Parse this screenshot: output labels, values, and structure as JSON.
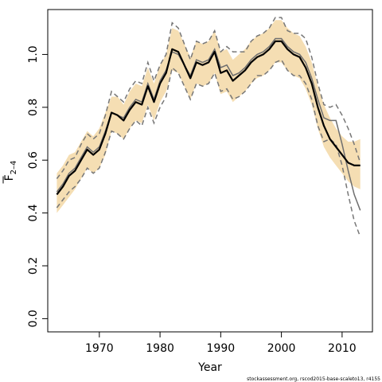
{
  "chart_data": {
    "type": "line",
    "title": "",
    "xlabel": "Year",
    "ylabel": "F",
    "ylabel_subscript": "2–4",
    "xlim": [
      1961.5,
      2015
    ],
    "ylim": [
      -0.05,
      1.17
    ],
    "x_ticks": [
      1970,
      1980,
      1990,
      2000,
      2010
    ],
    "x_tick_labels": [
      "1970",
      "1980",
      "1990",
      "2000",
      "2010"
    ],
    "y_ticks": [
      0.0,
      0.2,
      0.4,
      0.6,
      0.8,
      1.0
    ],
    "y_tick_labels": [
      "0.0",
      "0.2",
      "0.4",
      "0.6",
      "0.8",
      "1.0"
    ],
    "grid": false,
    "x": [
      1963,
      1964,
      1965,
      1966,
      1967,
      1968,
      1969,
      1970,
      1971,
      1972,
      1973,
      1974,
      1975,
      1976,
      1977,
      1978,
      1979,
      1980,
      1981,
      1982,
      1983,
      1984,
      1985,
      1986,
      1987,
      1988,
      1989,
      1990,
      1991,
      1992,
      1993,
      1994,
      1995,
      1996,
      1997,
      1998,
      1999,
      2000,
      2001,
      2002,
      2003,
      2004,
      2005,
      2006,
      2007,
      2008,
      2009,
      2010,
      2011,
      2012,
      2013
    ],
    "series": [
      {
        "role": "estimate",
        "values": [
          0.47,
          0.5,
          0.54,
          0.56,
          0.6,
          0.64,
          0.62,
          0.64,
          0.7,
          0.78,
          0.77,
          0.75,
          0.79,
          0.82,
          0.81,
          0.88,
          0.82,
          0.89,
          0.93,
          1.02,
          1.01,
          0.96,
          0.91,
          0.97,
          0.96,
          0.97,
          1.01,
          0.93,
          0.94,
          0.9,
          0.92,
          0.94,
          0.97,
          0.99,
          1.0,
          1.02,
          1.05,
          1.05,
          1.02,
          1.0,
          0.99,
          0.95,
          0.89,
          0.8,
          0.73,
          0.68,
          0.65,
          0.62,
          0.59,
          0.58,
          0.58
        ]
      },
      {
        "role": "retrospective",
        "values": [
          0.48,
          0.51,
          0.55,
          0.57,
          0.61,
          0.65,
          0.63,
          0.65,
          0.71,
          0.78,
          0.77,
          0.76,
          0.8,
          0.83,
          0.82,
          0.89,
          0.83,
          0.9,
          0.94,
          1.01,
          1.0,
          0.96,
          0.92,
          0.98,
          0.97,
          0.98,
          1.02,
          0.95,
          0.96,
          0.92,
          0.93,
          0.95,
          0.98,
          1.0,
          1.01,
          1.03,
          1.06,
          1.06,
          1.03,
          1.01,
          1.0,
          0.97,
          0.91,
          0.83,
          0.76,
          0.75,
          0.75,
          0.66,
          0.56,
          0.47,
          0.41
        ]
      },
      {
        "role": "upper-ci",
        "values": [
          0.53,
          0.56,
          0.6,
          0.61,
          0.66,
          0.7,
          0.68,
          0.7,
          0.77,
          0.86,
          0.84,
          0.82,
          0.87,
          0.9,
          0.89,
          0.97,
          0.9,
          0.96,
          1.0,
          1.12,
          1.1,
          1.04,
          0.98,
          1.05,
          1.04,
          1.05,
          1.09,
          1.01,
          1.03,
          1.01,
          1.01,
          1.01,
          1.05,
          1.07,
          1.08,
          1.1,
          1.14,
          1.14,
          1.09,
          1.08,
          1.08,
          1.06,
          0.99,
          0.89,
          0.81,
          0.8,
          0.81,
          0.77,
          0.72,
          0.66,
          0.59
        ]
      },
      {
        "role": "lower-ci",
        "values": [
          0.42,
          0.45,
          0.48,
          0.5,
          0.53,
          0.57,
          0.55,
          0.57,
          0.63,
          0.71,
          0.7,
          0.68,
          0.72,
          0.75,
          0.73,
          0.8,
          0.74,
          0.8,
          0.84,
          0.95,
          0.93,
          0.88,
          0.83,
          0.89,
          0.88,
          0.89,
          0.93,
          0.86,
          0.87,
          0.83,
          0.84,
          0.86,
          0.89,
          0.92,
          0.92,
          0.94,
          0.97,
          0.98,
          0.94,
          0.92,
          0.92,
          0.89,
          0.83,
          0.73,
          0.67,
          0.68,
          0.66,
          0.58,
          0.47,
          0.37,
          0.31
        ]
      },
      {
        "role": "band-upper",
        "values": [
          0.55,
          0.58,
          0.62,
          0.63,
          0.67,
          0.71,
          0.69,
          0.72,
          0.78,
          0.84,
          0.84,
          0.81,
          0.86,
          0.89,
          0.88,
          0.95,
          0.89,
          0.96,
          1.0,
          1.1,
          1.09,
          1.04,
          0.99,
          1.05,
          1.04,
          1.05,
          1.09,
          1.01,
          1.02,
          0.98,
          1.0,
          1.02,
          1.05,
          1.07,
          1.08,
          1.1,
          1.13,
          1.13,
          1.1,
          1.08,
          1.07,
          1.03,
          0.97,
          0.88,
          0.81,
          0.76,
          0.72,
          0.69,
          0.67,
          0.67,
          0.68
        ]
      },
      {
        "role": "band-lower",
        "values": [
          0.4,
          0.43,
          0.46,
          0.49,
          0.53,
          0.57,
          0.55,
          0.57,
          0.62,
          0.71,
          0.7,
          0.68,
          0.72,
          0.75,
          0.74,
          0.81,
          0.75,
          0.82,
          0.86,
          0.94,
          0.93,
          0.88,
          0.83,
          0.89,
          0.88,
          0.89,
          0.93,
          0.85,
          0.86,
          0.82,
          0.84,
          0.86,
          0.89,
          0.91,
          0.92,
          0.94,
          0.97,
          0.97,
          0.94,
          0.92,
          0.91,
          0.87,
          0.81,
          0.72,
          0.65,
          0.61,
          0.58,
          0.55,
          0.52,
          0.5,
          0.49
        ]
      }
    ],
    "colors": {
      "band": "#f5deb3",
      "estimate": "#000000",
      "retrospective": "#6e6e6e",
      "ci": "#777777",
      "axis": "#000000"
    }
  },
  "footer": {
    "note": "stockassessment.org, rscod2015-base-scaleto13, r4155"
  }
}
